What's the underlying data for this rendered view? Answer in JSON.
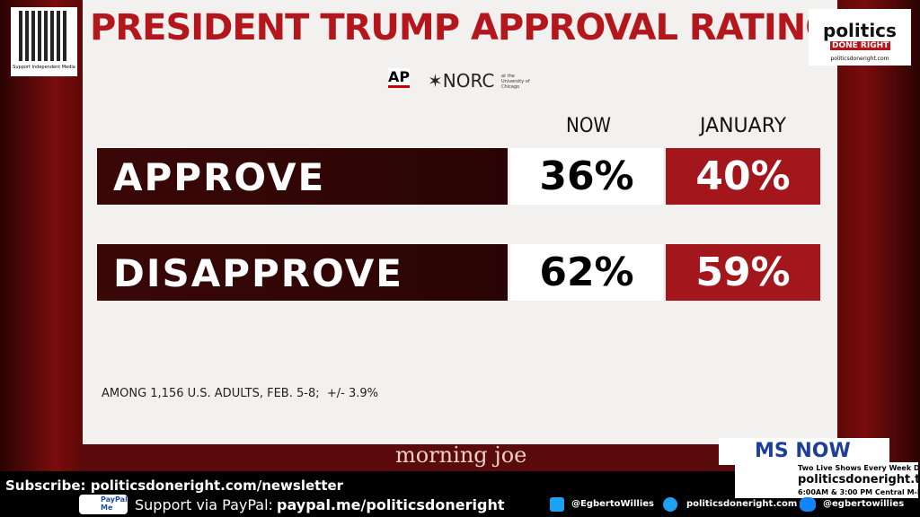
{
  "header": {
    "title": "PRESIDENT TRUMP APPROVAL RATING",
    "source_ap": "AP",
    "source_norc": "✶NORC",
    "source_norc_sub": "at the University of Chicago"
  },
  "table": {
    "columns": [
      "NOW",
      "JANUARY"
    ],
    "rows": [
      [
        "APPROVE",
        "36%",
        "40%"
      ],
      [
        "DISAPPROVE",
        "62%",
        "59%"
      ]
    ]
  },
  "footnote": "AMONG 1,156 U.S. ADULTS, FEB. 5-8;  +/- 3.9%",
  "show": "morning joe",
  "network": "MS NOW",
  "overlay": {
    "qr_caption": "Support Independent Media",
    "logo_top": "politics",
    "logo_bottom": "DONE RIGHT",
    "logo_url": "politicsdoneright.com",
    "subscribe": "Subscribe: politicsdoneright.com/newsletter",
    "paypal_badge": "PayPal Me",
    "paypal_label": "Support via PayPal:",
    "paypal_url": "paypal.me/politicsdoneright",
    "x_handle": "@EgbertoWillies",
    "web": "politicsdoneright.com",
    "bluesky": "@egbertowillies",
    "promo_line1": "Two Live Shows Every Week Day",
    "promo_url": "politicsdoneright.tv",
    "promo_times": "6:00AM & 3:00 PM Central M-F"
  }
}
